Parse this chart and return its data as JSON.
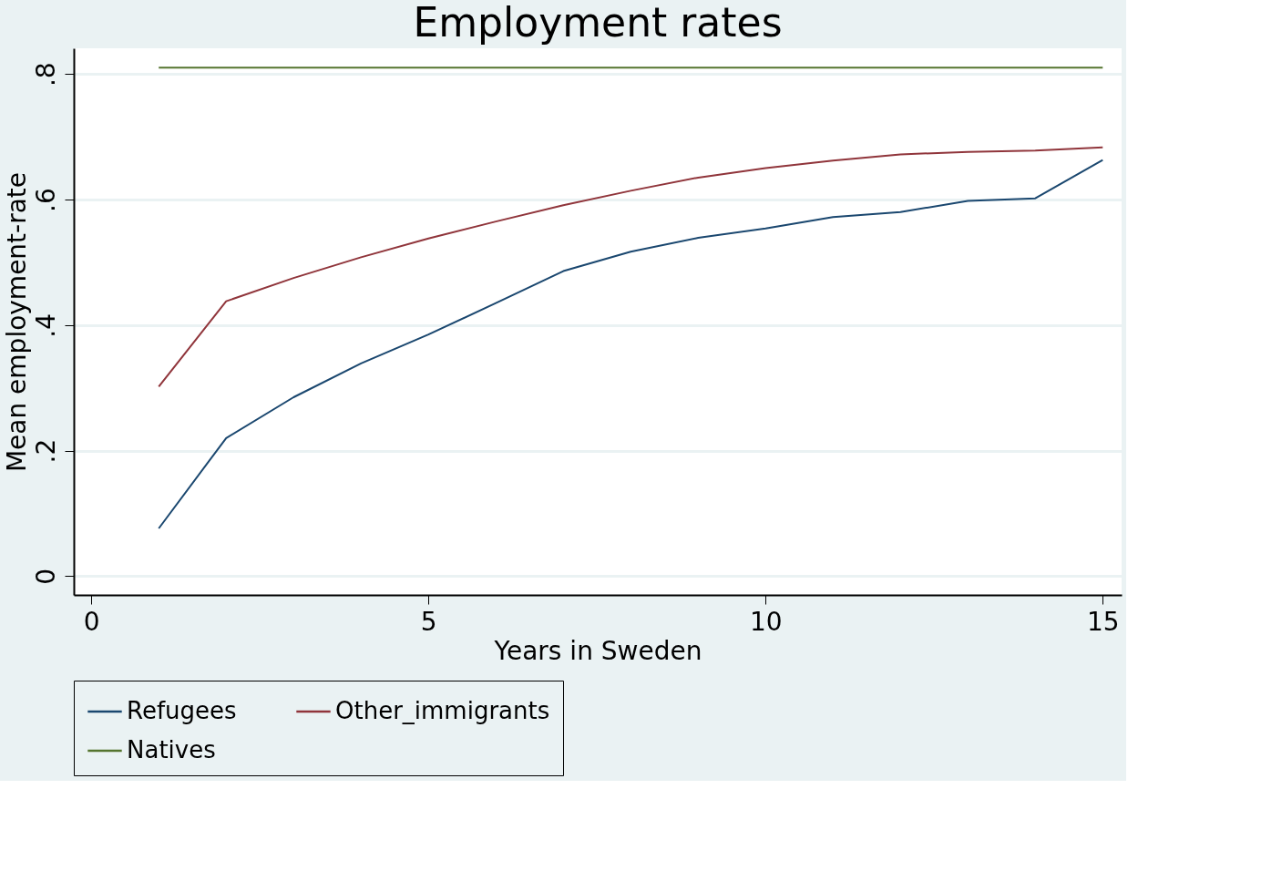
{
  "chart_data": {
    "type": "line",
    "title": "Employment rates",
    "xlabel": "Years in Sweden",
    "ylabel": "Mean employment-rate",
    "x": [
      1,
      2,
      3,
      4,
      5,
      6,
      7,
      8,
      9,
      10,
      11,
      12,
      13,
      14,
      15
    ],
    "series": [
      {
        "name": "Refugees",
        "color": "#1a476f",
        "values": [
          0.076,
          0.22,
          0.285,
          0.339,
          0.385,
          0.435,
          0.486,
          0.517,
          0.539,
          0.554,
          0.572,
          0.58,
          0.598,
          0.602,
          0.663
        ]
      },
      {
        "name": "Other_immigrants",
        "color": "#90353b",
        "values": [
          0.302,
          0.438,
          0.475,
          0.508,
          0.538,
          0.565,
          0.591,
          0.614,
          0.635,
          0.65,
          0.662,
          0.672,
          0.676,
          0.678,
          0.683
        ]
      },
      {
        "name": "Natives",
        "color": "#55752f",
        "values": [
          0.81,
          0.81,
          0.81,
          0.81,
          0.81,
          0.81,
          0.81,
          0.81,
          0.81,
          0.81,
          0.81,
          0.81,
          0.81,
          0.81,
          0.81
        ]
      }
    ],
    "xlim": [
      -0.26,
      15.28
    ],
    "xticks": [
      0,
      5,
      10,
      15
    ],
    "ylim": [
      -0.03,
      0.841
    ],
    "yticks": [
      {
        "value": 0,
        "label": "0"
      },
      {
        "value": 0.2,
        "label": ".2"
      },
      {
        "value": 0.4,
        "label": ".4"
      },
      {
        "value": 0.6,
        "label": ".6"
      },
      {
        "value": 0.8,
        "label": ".8"
      }
    ],
    "grid": "y",
    "legend": "bottom",
    "marker": "none",
    "line_style": "solid"
  }
}
